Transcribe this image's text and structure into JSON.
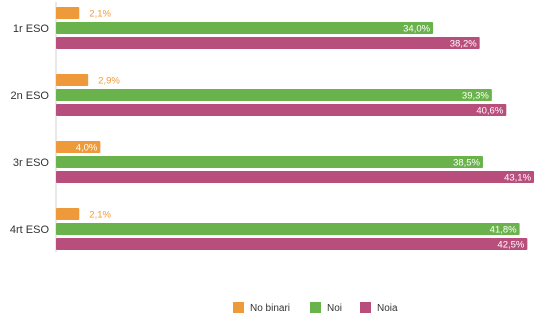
{
  "chart_data": {
    "type": "bar",
    "orientation": "horizontal",
    "categories": [
      "1r ESO",
      "2n ESO",
      "3r ESO",
      "4rt ESO"
    ],
    "series": [
      {
        "name": "No binari",
        "color": "#ef9a3a",
        "values": [
          2.1,
          2.9,
          4.0,
          2.1
        ],
        "labels": [
          "2,1%",
          "2,9%",
          "4,0%",
          "2,1%"
        ]
      },
      {
        "name": "Noi",
        "color": "#6ab24c",
        "values": [
          34.0,
          39.3,
          38.5,
          41.8
        ],
        "labels": [
          "34,0%",
          "39,3%",
          "38,5%",
          "41,8%"
        ]
      },
      {
        "name": "Noia",
        "color": "#b84e7c",
        "values": [
          38.2,
          40.6,
          43.1,
          42.5
        ],
        "labels": [
          "38,2%",
          "40,6%",
          "43,1%",
          "42,5%"
        ]
      }
    ],
    "xlim": [
      0,
      44
    ],
    "grid": false,
    "legend": "bottom-center"
  }
}
